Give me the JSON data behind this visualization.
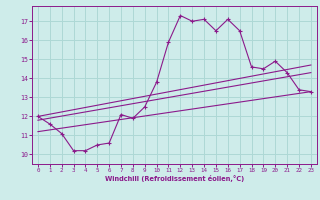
{
  "xlabel": "Windchill (Refroidissement éolien,°C)",
  "xlim": [
    -0.5,
    23.5
  ],
  "ylim": [
    9.5,
    17.8
  ],
  "yticks": [
    10,
    11,
    12,
    13,
    14,
    15,
    16,
    17
  ],
  "xticks": [
    0,
    1,
    2,
    3,
    4,
    5,
    6,
    7,
    8,
    9,
    10,
    11,
    12,
    13,
    14,
    15,
    16,
    17,
    18,
    19,
    20,
    21,
    22,
    23
  ],
  "background_color": "#ceecea",
  "grid_color": "#add8d5",
  "line_color": "#8b1a8b",
  "line1_x": [
    0,
    1,
    2,
    3,
    4,
    5,
    6,
    7,
    8,
    9,
    10,
    11,
    12,
    13,
    14,
    15,
    16,
    17,
    18,
    19,
    20,
    21,
    22,
    23
  ],
  "line1_y": [
    12.0,
    11.6,
    11.1,
    10.2,
    10.2,
    10.5,
    10.6,
    12.1,
    11.9,
    12.5,
    13.8,
    15.9,
    17.3,
    17.0,
    17.1,
    16.5,
    17.1,
    16.5,
    14.6,
    14.5,
    14.9,
    14.3,
    13.4,
    13.3
  ],
  "line2_x": [
    0,
    23
  ],
  "line2_y": [
    12.0,
    14.7
  ],
  "line3_x": [
    0,
    23
  ],
  "line3_y": [
    11.8,
    14.3
  ],
  "line4_x": [
    0,
    23
  ],
  "line4_y": [
    11.2,
    13.3
  ]
}
